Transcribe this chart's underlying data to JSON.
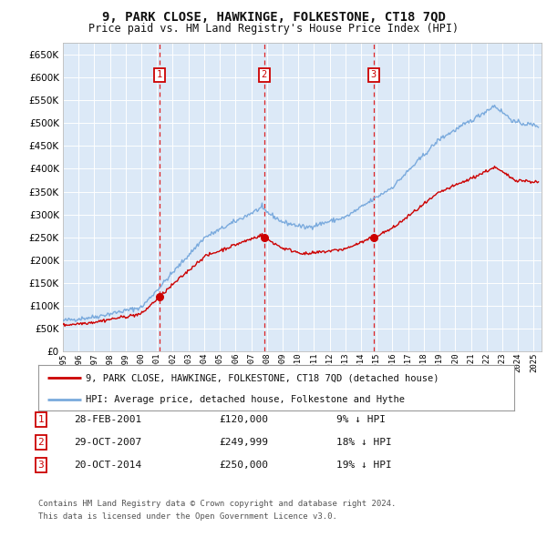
{
  "title": "9, PARK CLOSE, HAWKINGE, FOLKESTONE, CT18 7QD",
  "subtitle": "Price paid vs. HM Land Registry's House Price Index (HPI)",
  "background_color": "#ffffff",
  "plot_bg_color": "#dce9f7",
  "grid_color": "#c8d8ec",
  "ylim": [
    0,
    675000
  ],
  "yticks": [
    0,
    50000,
    100000,
    150000,
    200000,
    250000,
    300000,
    350000,
    400000,
    450000,
    500000,
    550000,
    600000,
    650000
  ],
  "sales": [
    {
      "date_num": 2001.15,
      "price": 120000,
      "label": "1"
    },
    {
      "date_num": 2007.83,
      "price": 249999,
      "label": "2"
    },
    {
      "date_num": 2014.8,
      "price": 250000,
      "label": "3"
    }
  ],
  "vline_color": "#dd0000",
  "sale_marker_color": "#cc0000",
  "hpi_line_color": "#7aaadd",
  "price_line_color": "#cc0000",
  "legend_entries": [
    "9, PARK CLOSE, HAWKINGE, FOLKESTONE, CT18 7QD (detached house)",
    "HPI: Average price, detached house, Folkestone and Hythe"
  ],
  "table_rows": [
    {
      "num": "1",
      "date": "28-FEB-2001",
      "price": "£120,000",
      "hpi": "9% ↓ HPI"
    },
    {
      "num": "2",
      "date": "29-OCT-2007",
      "price": "£249,999",
      "hpi": "18% ↓ HPI"
    },
    {
      "num": "3",
      "date": "20-OCT-2014",
      "price": "£250,000",
      "hpi": "19% ↓ HPI"
    }
  ],
  "footnote1": "Contains HM Land Registry data © Crown copyright and database right 2024.",
  "footnote2": "This data is licensed under the Open Government Licence v3.0.",
  "xmin": 1995.0,
  "xmax": 2025.5
}
